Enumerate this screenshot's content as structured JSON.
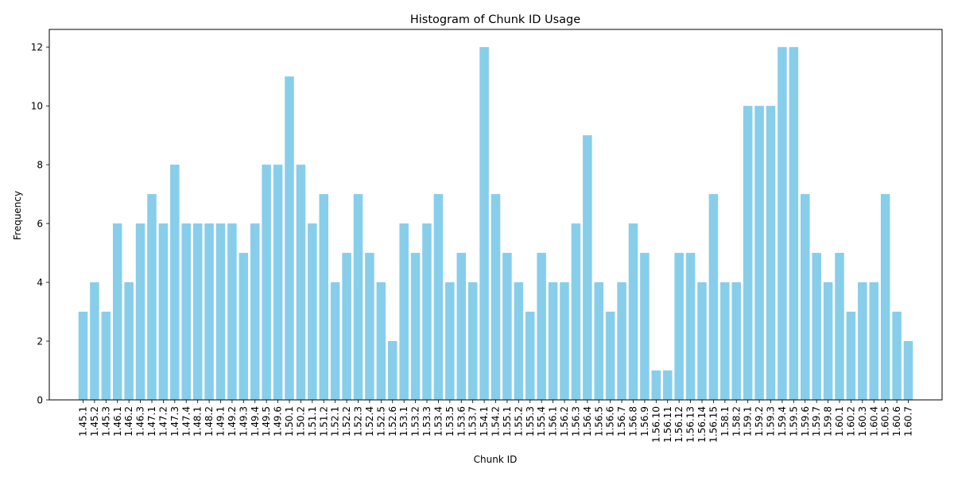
{
  "chart_data": {
    "type": "bar",
    "title": "Histogram of Chunk ID Usage",
    "xlabel": "Chunk ID",
    "ylabel": "Frequency",
    "ylim": [
      0,
      12.6
    ],
    "yticks": [
      0,
      2,
      4,
      6,
      8,
      10,
      12
    ],
    "grid": false,
    "bar_color": "#87ceeb",
    "categories": [
      "1.45.1",
      "1.45.2",
      "1.45.3",
      "1.46.1",
      "1.46.2",
      "1.46.3",
      "1.47.1",
      "1.47.2",
      "1.47.3",
      "1.47.4",
      "1.48.1",
      "1.48.2",
      "1.49.1",
      "1.49.2",
      "1.49.3",
      "1.49.4",
      "1.49.5",
      "1.49.6",
      "1.50.1",
      "1.50.2",
      "1.51.1",
      "1.51.2",
      "1.52.1",
      "1.52.2",
      "1.52.3",
      "1.52.4",
      "1.52.5",
      "1.52.6",
      "1.53.1",
      "1.53.2",
      "1.53.3",
      "1.53.4",
      "1.53.5",
      "1.53.6",
      "1.53.7",
      "1.54.1",
      "1.54.2",
      "1.55.1",
      "1.55.2",
      "1.55.3",
      "1.55.4",
      "1.56.1",
      "1.56.2",
      "1.56.3",
      "1.56.4",
      "1.56.5",
      "1.56.6",
      "1.56.7",
      "1.56.8",
      "1.56.9",
      "1.56.10",
      "1.56.11",
      "1.56.12",
      "1.56.13",
      "1.56.14",
      "1.56.15",
      "1.58.1",
      "1.58.2",
      "1.59.1",
      "1.59.2",
      "1.59.3",
      "1.59.4",
      "1.59.5",
      "1.59.6",
      "1.59.7",
      "1.59.8",
      "1.60.1",
      "1.60.2",
      "1.60.3",
      "1.60.4",
      "1.60.5",
      "1.60.6",
      "1.60.7"
    ],
    "values": [
      3,
      4,
      3,
      6,
      4,
      6,
      7,
      6,
      8,
      6,
      6,
      6,
      6,
      6,
      5,
      6,
      8,
      8,
      11,
      8,
      6,
      7,
      4,
      5,
      7,
      5,
      4,
      2,
      6,
      5,
      6,
      7,
      4,
      5,
      4,
      12,
      7,
      5,
      4,
      3,
      5,
      4,
      4,
      6,
      9,
      4,
      3,
      4,
      6,
      5,
      1,
      1,
      5,
      5,
      4,
      7,
      4,
      4,
      10,
      10,
      10,
      12,
      12,
      7,
      5,
      4,
      5,
      3,
      4,
      4,
      7,
      3,
      2
    ]
  }
}
